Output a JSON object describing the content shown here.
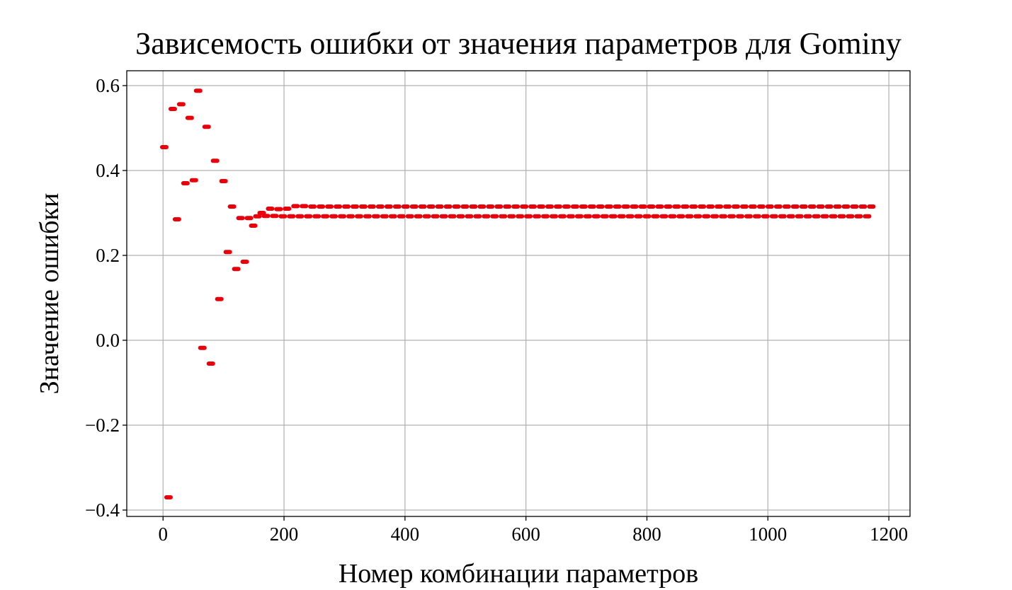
{
  "chart_data": {
    "type": "scatter",
    "title": "Зависемость ошибки от значения параметров для Gominy",
    "xlabel": "Номер комбинации параметров",
    "ylabel": "Значение ошибки",
    "xlim": [
      -60,
      1235
    ],
    "ylim": [
      -0.415,
      0.635
    ],
    "xticks": [
      0,
      200,
      400,
      600,
      800,
      1000,
      1200
    ],
    "xtick_labels": [
      "0",
      "200",
      "400",
      "600",
      "800",
      "1000",
      "1200"
    ],
    "yticks": [
      -0.4,
      -0.2,
      0.0,
      0.2,
      0.4,
      0.6
    ],
    "ytick_labels": [
      "−0.4",
      "−0.2",
      "0.0",
      "0.2",
      "0.4",
      "0.6"
    ],
    "grid": true,
    "marker_color": "#e8000b",
    "series": [
      {
        "name": "",
        "points": [
          [
            2,
            0.455
          ],
          [
            9,
            -0.37
          ],
          [
            16,
            0.545
          ],
          [
            30,
            0.556
          ],
          [
            37,
            0.37
          ],
          [
            44,
            0.524
          ],
          [
            51,
            0.377
          ],
          [
            23,
            0.285
          ],
          [
            58,
            0.588
          ],
          [
            65,
            -0.018
          ],
          [
            72,
            0.503
          ],
          [
            79,
            -0.055
          ],
          [
            86,
            0.423
          ],
          [
            93,
            0.097
          ],
          [
            100,
            0.375
          ],
          [
            107,
            0.208
          ],
          [
            114,
            0.315
          ],
          [
            121,
            0.168
          ],
          [
            128,
            0.288
          ],
          [
            135,
            0.185
          ],
          [
            142,
            0.288
          ],
          [
            149,
            0.27
          ],
          [
            156,
            0.292
          ],
          [
            163,
            0.3
          ],
          [
            170,
            0.293
          ],
          [
            177,
            0.31
          ],
          [
            184,
            0.293
          ],
          [
            191,
            0.309
          ],
          [
            198,
            0.292
          ],
          [
            205,
            0.31
          ],
          [
            212,
            0.292
          ],
          [
            219,
            0.316
          ],
          [
            226,
            0.292
          ],
          [
            233,
            0.316
          ],
          [
            240,
            0.292
          ],
          [
            247,
            0.315
          ],
          [
            254,
            0.292
          ],
          [
            261,
            0.315
          ],
          [
            268,
            0.292
          ],
          [
            275,
            0.315
          ],
          [
            282,
            0.292
          ],
          [
            289,
            0.315
          ],
          [
            296,
            0.292
          ],
          [
            303,
            0.315
          ],
          [
            310,
            0.292
          ],
          [
            317,
            0.315
          ],
          [
            324,
            0.292
          ],
          [
            331,
            0.315
          ],
          [
            338,
            0.292
          ],
          [
            345,
            0.315
          ],
          [
            352,
            0.292
          ],
          [
            359,
            0.315
          ],
          [
            366,
            0.292
          ],
          [
            373,
            0.315
          ],
          [
            380,
            0.292
          ],
          [
            387,
            0.315
          ],
          [
            394,
            0.292
          ],
          [
            401,
            0.315
          ],
          [
            408,
            0.292
          ],
          [
            415,
            0.315
          ],
          [
            422,
            0.292
          ],
          [
            429,
            0.315
          ],
          [
            436,
            0.292
          ],
          [
            443,
            0.315
          ],
          [
            450,
            0.292
          ],
          [
            457,
            0.315
          ],
          [
            464,
            0.292
          ],
          [
            471,
            0.315
          ],
          [
            478,
            0.292
          ],
          [
            485,
            0.315
          ],
          [
            492,
            0.292
          ],
          [
            499,
            0.315
          ],
          [
            506,
            0.292
          ],
          [
            513,
            0.315
          ],
          [
            520,
            0.292
          ],
          [
            527,
            0.315
          ],
          [
            534,
            0.292
          ],
          [
            541,
            0.315
          ],
          [
            548,
            0.292
          ],
          [
            555,
            0.315
          ],
          [
            562,
            0.292
          ],
          [
            569,
            0.315
          ],
          [
            576,
            0.292
          ],
          [
            583,
            0.315
          ],
          [
            590,
            0.292
          ],
          [
            597,
            0.315
          ],
          [
            604,
            0.292
          ],
          [
            611,
            0.315
          ],
          [
            618,
            0.292
          ],
          [
            625,
            0.315
          ],
          [
            632,
            0.292
          ],
          [
            639,
            0.315
          ],
          [
            646,
            0.292
          ],
          [
            653,
            0.315
          ],
          [
            660,
            0.292
          ],
          [
            667,
            0.315
          ],
          [
            674,
            0.292
          ],
          [
            681,
            0.315
          ],
          [
            688,
            0.292
          ],
          [
            695,
            0.315
          ],
          [
            702,
            0.292
          ],
          [
            709,
            0.315
          ],
          [
            716,
            0.292
          ],
          [
            723,
            0.315
          ],
          [
            730,
            0.292
          ],
          [
            737,
            0.315
          ],
          [
            744,
            0.292
          ],
          [
            751,
            0.315
          ],
          [
            758,
            0.292
          ],
          [
            765,
            0.315
          ],
          [
            772,
            0.292
          ],
          [
            779,
            0.315
          ],
          [
            786,
            0.292
          ],
          [
            793,
            0.315
          ],
          [
            800,
            0.292
          ],
          [
            807,
            0.315
          ],
          [
            814,
            0.292
          ],
          [
            821,
            0.315
          ],
          [
            828,
            0.292
          ],
          [
            835,
            0.315
          ],
          [
            842,
            0.292
          ],
          [
            849,
            0.315
          ],
          [
            856,
            0.292
          ],
          [
            863,
            0.315
          ],
          [
            870,
            0.292
          ],
          [
            877,
            0.315
          ],
          [
            884,
            0.292
          ],
          [
            891,
            0.315
          ],
          [
            898,
            0.292
          ],
          [
            905,
            0.315
          ],
          [
            912,
            0.292
          ],
          [
            919,
            0.315
          ],
          [
            926,
            0.292
          ],
          [
            933,
            0.315
          ],
          [
            940,
            0.292
          ],
          [
            947,
            0.315
          ],
          [
            954,
            0.292
          ],
          [
            961,
            0.315
          ],
          [
            968,
            0.292
          ],
          [
            975,
            0.315
          ],
          [
            982,
            0.292
          ],
          [
            989,
            0.315
          ],
          [
            996,
            0.292
          ],
          [
            1003,
            0.315
          ],
          [
            1010,
            0.292
          ],
          [
            1017,
            0.315
          ],
          [
            1024,
            0.292
          ],
          [
            1031,
            0.315
          ],
          [
            1038,
            0.292
          ],
          [
            1045,
            0.315
          ],
          [
            1052,
            0.292
          ],
          [
            1059,
            0.315
          ],
          [
            1066,
            0.292
          ],
          [
            1073,
            0.315
          ],
          [
            1080,
            0.292
          ],
          [
            1087,
            0.315
          ],
          [
            1094,
            0.292
          ],
          [
            1101,
            0.315
          ],
          [
            1108,
            0.292
          ],
          [
            1115,
            0.315
          ],
          [
            1122,
            0.292
          ],
          [
            1129,
            0.315
          ],
          [
            1136,
            0.292
          ],
          [
            1143,
            0.315
          ],
          [
            1150,
            0.292
          ],
          [
            1157,
            0.315
          ],
          [
            1164,
            0.292
          ],
          [
            1171,
            0.315
          ]
        ]
      }
    ]
  }
}
